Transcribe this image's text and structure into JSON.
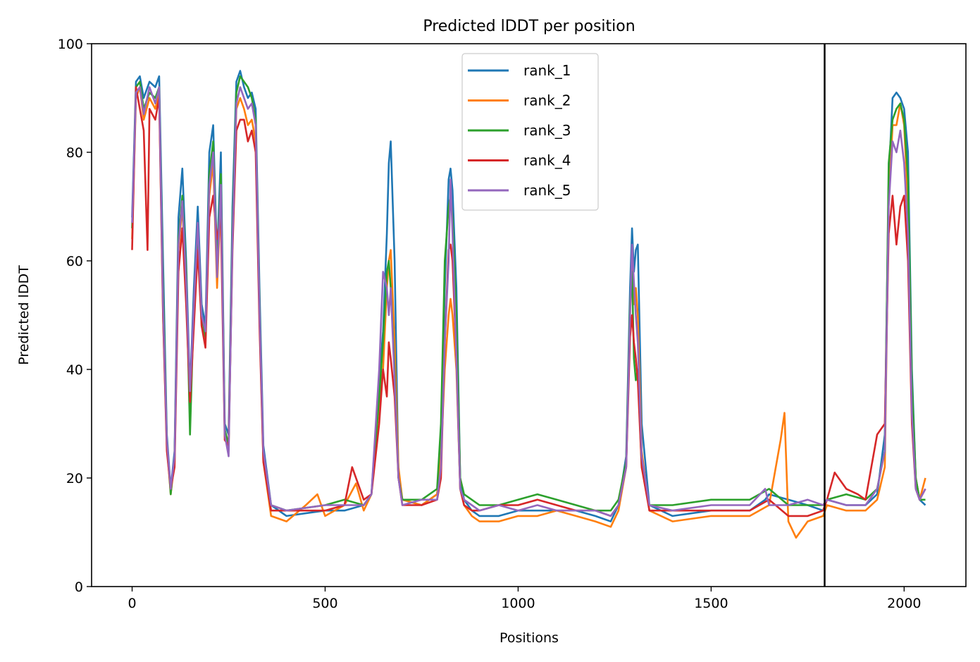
{
  "chart_data": {
    "type": "line",
    "title": "Predicted lDDT per position",
    "xlabel": "Positions",
    "ylabel": "Predicted lDDT",
    "xlim": [
      -105,
      2160
    ],
    "ylim": [
      0,
      100
    ],
    "xticks": [
      0,
      500,
      1000,
      1500,
      2000
    ],
    "yticks": [
      0,
      20,
      40,
      60,
      80,
      100
    ],
    "grid": false,
    "legend_position": "top-center",
    "vline_x": 1794,
    "x_max": 2055,
    "series": [
      {
        "name": "rank_1",
        "color": "#1f77b4",
        "x": [
          0,
          10,
          20,
          30,
          45,
          60,
          70,
          80,
          90,
          100,
          110,
          120,
          130,
          140,
          150,
          160,
          170,
          180,
          190,
          200,
          210,
          220,
          230,
          240,
          250,
          260,
          270,
          280,
          290,
          300,
          310,
          320,
          330,
          340,
          360,
          400,
          500,
          550,
          600,
          620,
          640,
          650,
          660,
          665,
          670,
          680,
          690,
          700,
          750,
          790,
          800,
          810,
          820,
          825,
          830,
          840,
          850,
          860,
          880,
          900,
          950,
          1000,
          1050,
          1100,
          1150,
          1200,
          1240,
          1260,
          1280,
          1290,
          1295,
          1300,
          1305,
          1310,
          1320,
          1340,
          1400,
          1500,
          1600,
          1640,
          1650,
          1700,
          1750,
          1790,
          1800,
          1850,
          1900,
          1930,
          1950,
          1960,
          1970,
          1980,
          1990,
          2000,
          2010,
          2020,
          2030,
          2040,
          2055
        ],
        "y": [
          68,
          93,
          94,
          90,
          93,
          92,
          94,
          60,
          28,
          18,
          25,
          68,
          77,
          60,
          36,
          55,
          70,
          52,
          48,
          80,
          85,
          60,
          80,
          30,
          28,
          70,
          93,
          95,
          92,
          90,
          91,
          88,
          55,
          26,
          15,
          13,
          14,
          14,
          15,
          17,
          38,
          47,
          65,
          78,
          82,
          60,
          20,
          16,
          15,
          17,
          26,
          55,
          75,
          77,
          73,
          55,
          20,
          16,
          14,
          13,
          13,
          14,
          14,
          14,
          14,
          13,
          12,
          15,
          24,
          55,
          66,
          58,
          62,
          63,
          30,
          15,
          13,
          14,
          14,
          16,
          17,
          16,
          15,
          14,
          16,
          15,
          15,
          17,
          28,
          75,
          90,
          91,
          90,
          88,
          80,
          40,
          20,
          16,
          15
        ]
      },
      {
        "name": "rank_2",
        "color": "#ff7f0e",
        "x": [
          0,
          10,
          20,
          30,
          45,
          60,
          70,
          80,
          90,
          100,
          110,
          120,
          130,
          140,
          150,
          160,
          170,
          180,
          190,
          200,
          210,
          220,
          230,
          240,
          250,
          260,
          270,
          280,
          290,
          300,
          310,
          320,
          330,
          340,
          360,
          400,
          450,
          480,
          500,
          550,
          580,
          600,
          620,
          640,
          650,
          660,
          665,
          670,
          680,
          690,
          700,
          750,
          790,
          800,
          810,
          820,
          825,
          830,
          840,
          850,
          860,
          880,
          900,
          950,
          1000,
          1050,
          1100,
          1150,
          1200,
          1240,
          1260,
          1280,
          1290,
          1295,
          1300,
          1305,
          1310,
          1320,
          1340,
          1400,
          1500,
          1600,
          1650,
          1680,
          1690,
          1700,
          1720,
          1750,
          1790,
          1800,
          1850,
          1900,
          1930,
          1950,
          1960,
          1970,
          1980,
          1990,
          2000,
          2010,
          2020,
          2030,
          2040,
          2055
        ],
        "y": [
          64,
          90,
          92,
          86,
          90,
          88,
          91,
          50,
          26,
          17,
          23,
          62,
          70,
          55,
          33,
          50,
          64,
          48,
          45,
          72,
          78,
          55,
          72,
          28,
          25,
          64,
          88,
          90,
          88,
          85,
          86,
          82,
          50,
          23,
          13,
          12,
          15,
          17,
          13,
          15,
          19,
          14,
          17,
          34,
          40,
          55,
          60,
          62,
          45,
          22,
          16,
          15,
          17,
          24,
          40,
          50,
          53,
          50,
          40,
          18,
          15,
          13,
          12,
          12,
          13,
          13,
          14,
          13,
          12,
          11,
          14,
          22,
          50,
          60,
          52,
          55,
          50,
          25,
          14,
          12,
          13,
          13,
          15,
          27,
          32,
          12,
          9,
          12,
          13,
          15,
          14,
          14,
          16,
          22,
          70,
          85,
          85,
          89,
          85,
          70,
          35,
          20,
          16,
          20
        ]
      },
      {
        "name": "rank_3",
        "color": "#2ca02c",
        "x": [
          0,
          10,
          20,
          30,
          45,
          60,
          70,
          80,
          90,
          100,
          110,
          120,
          130,
          140,
          150,
          160,
          170,
          180,
          190,
          200,
          210,
          220,
          230,
          240,
          250,
          260,
          270,
          280,
          290,
          300,
          310,
          320,
          330,
          340,
          360,
          400,
          500,
          550,
          600,
          620,
          640,
          650,
          660,
          665,
          670,
          680,
          690,
          700,
          750,
          790,
          800,
          810,
          820,
          825,
          830,
          840,
          850,
          860,
          880,
          900,
          950,
          1000,
          1050,
          1100,
          1150,
          1200,
          1240,
          1260,
          1280,
          1290,
          1295,
          1300,
          1305,
          1310,
          1320,
          1340,
          1400,
          1500,
          1600,
          1650,
          1700,
          1750,
          1790,
          1800,
          1850,
          1900,
          1930,
          1950,
          1960,
          1970,
          1980,
          1990,
          2000,
          2010,
          2020,
          2030,
          2040,
          2055
        ],
        "y": [
          66,
          92,
          93,
          88,
          91,
          90,
          92,
          55,
          27,
          17,
          24,
          64,
          72,
          58,
          28,
          52,
          66,
          50,
          46,
          76,
          82,
          58,
          76,
          29,
          26,
          66,
          91,
          94,
          93,
          92,
          90,
          86,
          52,
          24,
          15,
          14,
          15,
          16,
          15,
          17,
          35,
          45,
          58,
          60,
          55,
          40,
          20,
          16,
          16,
          18,
          30,
          60,
          70,
          72,
          68,
          50,
          20,
          17,
          16,
          15,
          15,
          16,
          17,
          16,
          15,
          14,
          14,
          16,
          23,
          52,
          58,
          42,
          38,
          40,
          22,
          15,
          15,
          16,
          16,
          18,
          15,
          15,
          15,
          16,
          17,
          16,
          18,
          25,
          78,
          86,
          88,
          89,
          86,
          75,
          38,
          20,
          16,
          16
        ]
      },
      {
        "name": "rank_4",
        "color": "#d62728",
        "x": [
          0,
          10,
          20,
          30,
          40,
          45,
          60,
          70,
          80,
          90,
          100,
          110,
          120,
          130,
          140,
          150,
          160,
          170,
          180,
          190,
          200,
          210,
          220,
          230,
          240,
          250,
          260,
          270,
          280,
          290,
          300,
          310,
          320,
          330,
          340,
          360,
          400,
          500,
          550,
          570,
          600,
          620,
          640,
          650,
          660,
          665,
          670,
          680,
          690,
          700,
          750,
          790,
          800,
          810,
          820,
          825,
          830,
          840,
          850,
          860,
          880,
          900,
          950,
          1000,
          1050,
          1100,
          1150,
          1200,
          1240,
          1260,
          1280,
          1290,
          1295,
          1300,
          1305,
          1310,
          1320,
          1340,
          1400,
          1500,
          1600,
          1650,
          1700,
          1750,
          1790,
          1800,
          1820,
          1850,
          1880,
          1900,
          1930,
          1950,
          1960,
          1970,
          1980,
          1990,
          2000,
          2010,
          2020,
          2030,
          2040,
          2055
        ],
        "y": [
          62,
          92,
          88,
          84,
          62,
          88,
          86,
          90,
          50,
          25,
          18,
          22,
          58,
          66,
          52,
          34,
          48,
          62,
          48,
          44,
          68,
          72,
          64,
          68,
          27,
          26,
          62,
          84,
          86,
          86,
          82,
          84,
          80,
          48,
          23,
          14,
          14,
          14,
          15,
          22,
          16,
          17,
          30,
          40,
          35,
          45,
          42,
          35,
          20,
          15,
          15,
          16,
          20,
          45,
          62,
          63,
          60,
          42,
          18,
          15,
          14,
          14,
          15,
          15,
          16,
          15,
          14,
          14,
          13,
          15,
          22,
          46,
          50,
          45,
          42,
          38,
          22,
          14,
          14,
          14,
          14,
          16,
          13,
          13,
          14,
          16,
          21,
          18,
          17,
          16,
          28,
          30,
          65,
          72,
          63,
          70,
          72,
          60,
          30,
          18,
          16,
          18
        ]
      },
      {
        "name": "rank_5",
        "color": "#9467bd",
        "x": [
          0,
          10,
          20,
          30,
          45,
          60,
          70,
          80,
          90,
          100,
          110,
          120,
          130,
          140,
          150,
          160,
          170,
          180,
          190,
          200,
          210,
          220,
          230,
          240,
          250,
          260,
          270,
          280,
          290,
          300,
          310,
          320,
          330,
          340,
          360,
          400,
          500,
          550,
          600,
          620,
          640,
          650,
          660,
          665,
          670,
          680,
          690,
          700,
          750,
          790,
          800,
          810,
          820,
          825,
          830,
          840,
          850,
          860,
          880,
          900,
          950,
          1000,
          1050,
          1100,
          1150,
          1200,
          1240,
          1260,
          1280,
          1290,
          1295,
          1300,
          1305,
          1310,
          1320,
          1340,
          1400,
          1500,
          1600,
          1640,
          1650,
          1700,
          1750,
          1790,
          1800,
          1850,
          1900,
          1930,
          1950,
          1960,
          1970,
          1980,
          1990,
          2000,
          2010,
          2020,
          2030,
          2040,
          2055
        ],
        "y": [
          67,
          91,
          92,
          87,
          92,
          89,
          92,
          52,
          27,
          18,
          24,
          63,
          71,
          56,
          36,
          52,
          67,
          50,
          47,
          74,
          80,
          57,
          74,
          28,
          24,
          64,
          89,
          92,
          90,
          88,
          89,
          85,
          51,
          25,
          15,
          14,
          15,
          15,
          15,
          17,
          40,
          58,
          55,
          50,
          55,
          38,
          20,
          15,
          16,
          16,
          22,
          45,
          60,
          75,
          65,
          42,
          18,
          16,
          15,
          14,
          15,
          14,
          15,
          14,
          14,
          14,
          13,
          15,
          22,
          50,
          63,
          56,
          50,
          45,
          24,
          15,
          14,
          15,
          15,
          18,
          15,
          15,
          16,
          15,
          16,
          15,
          15,
          18,
          25,
          70,
          82,
          80,
          84,
          78,
          65,
          32,
          18,
          16,
          18
        ]
      }
    ]
  }
}
